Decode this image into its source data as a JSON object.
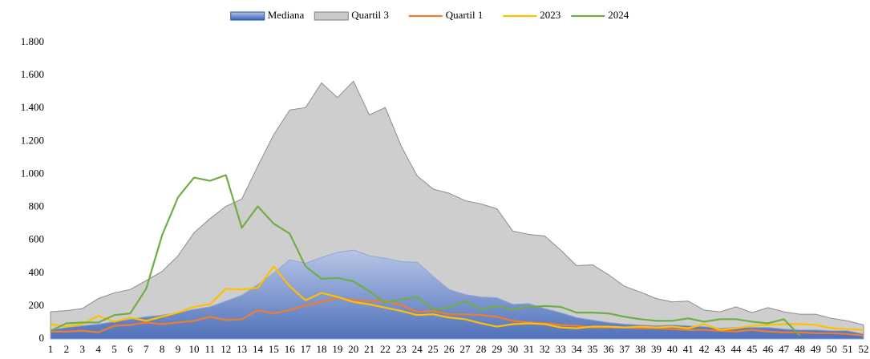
{
  "chart_data": {
    "type": "line",
    "legend": "top",
    "categories": [
      1,
      2,
      3,
      4,
      5,
      6,
      7,
      8,
      9,
      10,
      11,
      12,
      13,
      14,
      15,
      16,
      17,
      18,
      19,
      20,
      21,
      22,
      23,
      24,
      25,
      26,
      27,
      28,
      29,
      30,
      31,
      32,
      33,
      34,
      35,
      36,
      37,
      38,
      39,
      40,
      41,
      42,
      43,
      44,
      45,
      46,
      47,
      48,
      49,
      50,
      51,
      52
    ],
    "ylim": [
      0,
      1800
    ],
    "yticks": [
      0,
      200,
      400,
      600,
      800,
      {
        "value": 1000,
        "label": "1.000"
      },
      {
        "value": 1200,
        "label": "1.200"
      },
      {
        "value": 1400,
        "label": "1.400"
      },
      {
        "value": 1600,
        "label": "1.600"
      },
      {
        "value": 1800,
        "label": "1.800"
      }
    ],
    "series": [
      {
        "name": "Mediana",
        "kind": "area",
        "color": "#4472c4",
        "values": [
          55,
          70,
          80,
          90,
          105,
          120,
          135,
          145,
          160,
          180,
          195,
          230,
          265,
          330,
          400,
          480,
          460,
          495,
          525,
          540,
          505,
          490,
          470,
          465,
          380,
          300,
          270,
          255,
          250,
          210,
          215,
          185,
          160,
          130,
          115,
          100,
          90,
          85,
          80,
          85,
          80,
          75,
          65,
          70,
          70,
          70,
          60,
          55,
          55,
          50,
          50,
          30
        ]
      },
      {
        "name": "Quartil 3",
        "kind": "area",
        "color": "#a5a5a5",
        "values": [
          165,
          172,
          185,
          245,
          280,
          300,
          355,
          410,
          505,
          645,
          730,
          805,
          850,
          1050,
          1240,
          1390,
          1405,
          1555,
          1465,
          1565,
          1360,
          1405,
          1170,
          990,
          910,
          885,
          840,
          820,
          790,
          655,
          635,
          625,
          540,
          445,
          450,
          390,
          320,
          285,
          245,
          225,
          230,
          175,
          165,
          195,
          160,
          190,
          165,
          150,
          150,
          125,
          110,
          85
        ]
      },
      {
        "name": "Quartil 1",
        "kind": "line",
        "color": "#ed7d31",
        "values": [
          45,
          45,
          50,
          40,
          80,
          85,
          100,
          90,
          100,
          110,
          135,
          115,
          120,
          175,
          155,
          175,
          205,
          225,
          250,
          235,
          230,
          230,
          205,
          165,
          170,
          150,
          150,
          145,
          135,
          110,
          100,
          95,
          85,
          80,
          70,
          70,
          70,
          65,
          65,
          60,
          55,
          55,
          50,
          45,
          55,
          45,
          40,
          40,
          35,
          35,
          30,
          20
        ]
      },
      {
        "name": "2023",
        "kind": "line",
        "color": "#ffc000",
        "values": [
          90,
          75,
          90,
          140,
          105,
          130,
          110,
          135,
          160,
          195,
          210,
          305,
          300,
          310,
          440,
          320,
          235,
          280,
          255,
          225,
          210,
          190,
          170,
          145,
          150,
          130,
          120,
          95,
          75,
          90,
          95,
          90,
          70,
          65,
          75,
          75,
          70,
          75,
          70,
          75,
          65,
          90,
          55,
          65,
          80,
          85,
          90,
          90,
          85,
          65,
          60,
          55
        ]
      },
      {
        "name": "2024",
        "kind": "line",
        "color": "#70ad47",
        "values": [
          50,
          95,
          100,
          100,
          145,
          155,
          305,
          630,
          860,
          980,
          960,
          995,
          675,
          805,
          700,
          640,
          440,
          365,
          370,
          350,
          290,
          220,
          240,
          255,
          180,
          190,
          230,
          180,
          200,
          180,
          195,
          200,
          195,
          160,
          160,
          155,
          135,
          120,
          110,
          110,
          125,
          105,
          120,
          120,
          105,
          95,
          120,
          20,
          null,
          null,
          null,
          null
        ]
      }
    ]
  }
}
